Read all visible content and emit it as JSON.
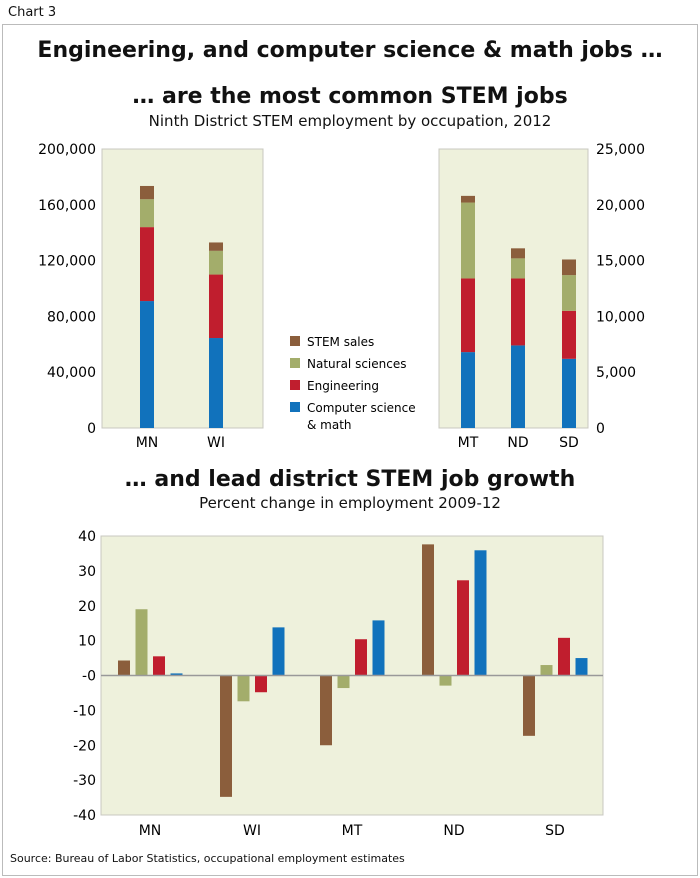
{
  "label": "Chart 3",
  "title_line1": "Engineering, and computer science & math jobs …",
  "title_line2": "… are the most common STEM jobs",
  "subtitle_top": "Ninth District STEM employment by occupation, 2012",
  "title_bottom": "… and lead district STEM job growth",
  "subtitle_bottom": "Percent change in employment 2009-12",
  "source": "Source: Bureau of Labor Statistics, occupational employment estimates",
  "colors": {
    "STEM sales": "#8B5E3C",
    "Natural sciences": "#A3AD6B",
    "Engineering": "#C01E2E",
    "Computer science & math": "#1172BC",
    "plot_bg": "#EEF1DC"
  },
  "legend": [
    "STEM sales",
    "Natural sciences",
    "Engineering",
    "Computer science & math"
  ],
  "legend_labels": [
    "STEM sales",
    "Natural sciences",
    "Engineering",
    "Computer science",
    "& math"
  ],
  "chart_data": [
    {
      "type": "bar",
      "stacked": true,
      "categories": [
        "MN",
        "WI"
      ],
      "ylim": [
        0,
        200000
      ],
      "yticks": [
        "0",
        "40,000",
        "80,000",
        "120,000",
        "160,000",
        "200,000"
      ],
      "series": [
        {
          "name": "Computer science & math",
          "values": [
            91000,
            64500
          ]
        },
        {
          "name": "Engineering",
          "values": [
            53000,
            45500
          ]
        },
        {
          "name": "Natural sciences",
          "values": [
            20000,
            17000
          ]
        },
        {
          "name": "STEM sales",
          "values": [
            9500,
            6000
          ]
        }
      ]
    },
    {
      "type": "bar",
      "stacked": true,
      "categories": [
        "MT",
        "ND",
        "SD"
      ],
      "ylim": [
        0,
        25000
      ],
      "yticks": [
        "0",
        "5,000",
        "10,000",
        "15,000",
        "20,000",
        "25,000"
      ],
      "axis_side": "right",
      "series": [
        {
          "name": "Computer science & math",
          "values": [
            6800,
            7400,
            6200
          ]
        },
        {
          "name": "Engineering",
          "values": [
            6600,
            6000,
            4300
          ]
        },
        {
          "name": "Natural sciences",
          "values": [
            6800,
            1800,
            3200
          ]
        },
        {
          "name": "STEM sales",
          "values": [
            600,
            900,
            1400
          ]
        }
      ]
    },
    {
      "type": "bar",
      "categories": [
        "MN",
        "WI",
        "MT",
        "ND",
        "SD"
      ],
      "ylim": [
        -40,
        40
      ],
      "yticks": [
        "-40",
        "-30",
        "-20",
        "-10",
        "-0",
        "10",
        "20",
        "30",
        "40"
      ],
      "series": [
        {
          "name": "STEM sales",
          "values": [
            4.3,
            -34.8,
            -20,
            37.6,
            -17.3
          ]
        },
        {
          "name": "Natural sciences",
          "values": [
            19,
            -7.4,
            -3.6,
            -2.9,
            3
          ]
        },
        {
          "name": "Engineering",
          "values": [
            5.5,
            -4.8,
            10.4,
            27.3,
            10.8
          ]
        },
        {
          "name": "Computer science & math",
          "values": [
            0.6,
            13.8,
            15.8,
            35.9,
            5
          ]
        }
      ]
    }
  ]
}
